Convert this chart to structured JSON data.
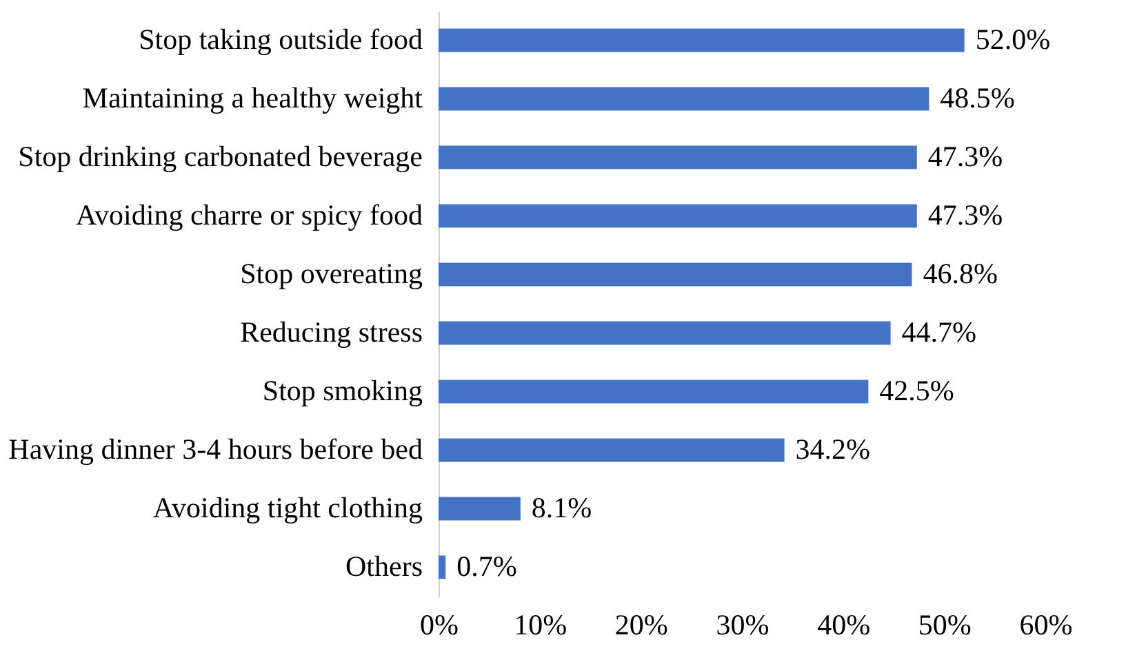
{
  "chart_data": {
    "type": "bar",
    "orientation": "horizontal",
    "categories": [
      "Stop taking outside food",
      "Maintaining a healthy weight",
      "Stop drinking carbonated beverage",
      "Avoiding charre or spicy food",
      "Stop overeating",
      "Reducing stress",
      "Stop smoking",
      "Having dinner 3-4 hours before bed",
      "Avoiding tight clothing",
      "Others"
    ],
    "values": [
      52.0,
      48.5,
      47.3,
      47.3,
      46.8,
      44.7,
      42.5,
      34.2,
      8.1,
      0.7
    ],
    "value_labels": [
      "52.0%",
      "48.5%",
      "47.3%",
      "47.3%",
      "46.8%",
      "44.7%",
      "42.5%",
      "34.2%",
      "8.1%",
      "0.7%"
    ],
    "color": "#4472c4",
    "xlim": [
      0,
      60
    ],
    "xticks": [
      {
        "value": 0,
        "label": "0%"
      },
      {
        "value": 10,
        "label": "10%"
      },
      {
        "value": 20,
        "label": "20%"
      },
      {
        "value": 30,
        "label": "30%"
      },
      {
        "value": 40,
        "label": "40%"
      },
      {
        "value": 50,
        "label": "50%"
      },
      {
        "value": 60,
        "label": "60%"
      }
    ],
    "grid": false
  }
}
